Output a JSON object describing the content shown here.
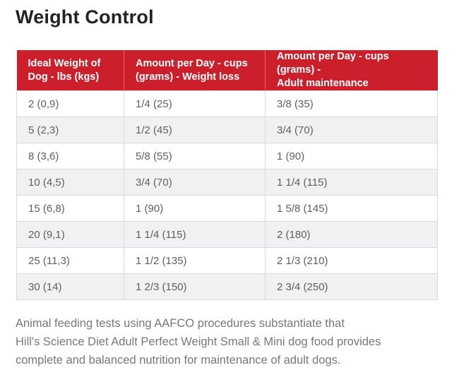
{
  "title": "Weight Control",
  "table": {
    "headers": [
      "Ideal Weight of\nDog - lbs (kgs)",
      "Amount per Day - cups\n(grams) - Weight loss",
      "Amount per Day - cups (grams) -\nAdult maintenance"
    ],
    "rows": [
      [
        "2 (0,9)",
        "1/4 (25)",
        "3/8 (35)"
      ],
      [
        "5 (2,3)",
        "1/2 (45)",
        "3/4 (70)"
      ],
      [
        "8 (3,6)",
        "5/8 (55)",
        "1 (90)"
      ],
      [
        "10 (4,5)",
        "3/4 (70)",
        "1 1/4 (115)"
      ],
      [
        "15 (6,8)",
        "1 (90)",
        "1 5/8 (145)"
      ],
      [
        "20 (9,1)",
        "1 1/4 (115)",
        "2 (180)"
      ],
      [
        "25 (11,3)",
        "1 1/2 (135)",
        "2 1/3 (210)"
      ],
      [
        "30 (14)",
        "1 2/3 (150)",
        "2 3/4 (250)"
      ]
    ]
  },
  "footnote": "Animal feeding tests using AAFCO procedures substantiate that\nHill's Science Diet Adult Perfect Weight Small & Mini dog food provides\ncomplete and balanced nutrition for maintenance of adult dogs.",
  "colors": {
    "header_bg": "#cb202c",
    "header_text": "#ffffff",
    "row_alt_bg": "#f0f1f2",
    "cell_border": "#d9d9d9",
    "cell_text": "#5d5f63",
    "title_text": "#232327",
    "footnote_text": "#77787b"
  }
}
